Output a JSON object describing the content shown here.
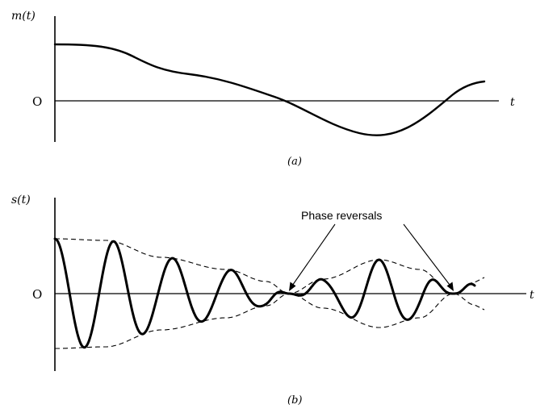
{
  "panel_a": {
    "y_label": "m(t)",
    "zero_label": "O",
    "x_label": "t",
    "caption": "(a)"
  },
  "panel_b": {
    "y_label": "s(t)",
    "zero_label": "O",
    "x_label": "t",
    "caption": "(b)",
    "annotation": "Phase reversals"
  },
  "colors": {
    "ink": "#000000",
    "background": "#ffffff"
  }
}
